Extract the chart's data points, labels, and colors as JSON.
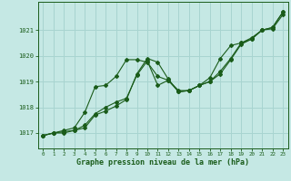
{
  "background_color": "#c5e8e4",
  "grid_color": "#a8d4d0",
  "line_color": "#1a5c1a",
  "xlabel": "Graphe pression niveau de la mer (hPa)",
  "ylim": [
    1016.4,
    1022.1
  ],
  "xlim": [
    -0.5,
    23.5
  ],
  "yticks": [
    1017,
    1018,
    1019,
    1020,
    1021
  ],
  "xticks": [
    0,
    1,
    2,
    3,
    4,
    5,
    6,
    7,
    8,
    9,
    10,
    11,
    12,
    13,
    14,
    15,
    16,
    17,
    18,
    19,
    20,
    21,
    22,
    23
  ],
  "line1": [
    1016.9,
    1017.0,
    1017.0,
    1017.1,
    1017.2,
    1017.7,
    1017.85,
    1018.05,
    1018.3,
    1019.3,
    1019.9,
    1019.75,
    1019.1,
    1018.6,
    1018.65,
    1018.85,
    1019.0,
    1019.3,
    1019.85,
    1020.45,
    1020.65,
    1021.0,
    1021.05,
    1021.6
  ],
  "line2": [
    1016.9,
    1017.0,
    1017.05,
    1017.1,
    1017.3,
    1017.75,
    1018.0,
    1018.2,
    1018.35,
    1019.25,
    1019.8,
    1018.85,
    1019.05,
    1018.6,
    1018.65,
    1018.85,
    1019.0,
    1019.4,
    1019.9,
    1020.5,
    1020.7,
    1021.0,
    1021.1,
    1021.7
  ],
  "line3": [
    1016.9,
    1017.0,
    1017.1,
    1017.2,
    1017.8,
    1018.8,
    1018.85,
    1019.2,
    1019.85,
    1019.85,
    1019.75,
    1019.2,
    1019.05,
    1018.65,
    1018.65,
    1018.85,
    1019.15,
    1019.9,
    1020.4,
    1020.5,
    1020.65,
    1021.0,
    1021.1,
    1021.7
  ]
}
